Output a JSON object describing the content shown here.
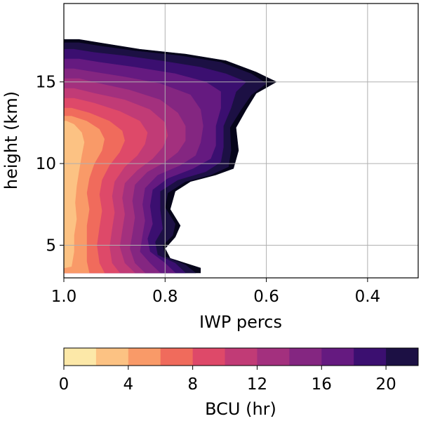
{
  "chart_data": {
    "type": "filled-contour",
    "xlabel": "IWP percs",
    "ylabel": "height (km)",
    "xlim": [
      1.0,
      0.3
    ],
    "ylim": [
      3.0,
      19.8
    ],
    "x_ticks": [
      1.0,
      0.8,
      0.6,
      0.4
    ],
    "x_tick_labels": [
      "1.0",
      "0.8",
      "0.6",
      "0.4"
    ],
    "y_ticks": [
      5,
      10,
      15
    ],
    "y_tick_labels": [
      "5",
      "10",
      "15"
    ],
    "grid": true,
    "colorbar": {
      "label": "BCU (hr)",
      "orientation": "horizontal",
      "placement": "bottom",
      "levels": [
        0,
        2,
        4,
        6,
        8,
        10,
        12,
        14,
        16,
        18,
        20,
        22
      ],
      "tick_values": [
        0,
        4,
        8,
        12,
        16,
        20
      ],
      "tick_labels": [
        "0",
        "4",
        "8",
        "12",
        "16",
        "20"
      ],
      "colors": [
        "#fce8a8",
        "#fcc283",
        "#f99a68",
        "#f06b5c",
        "#de4969",
        "#c13b76",
        "#a3307e",
        "#842681",
        "#651a80",
        "#3b0f70",
        "#1c1044",
        "#06051a"
      ]
    },
    "contour_boundaries": [
      {
        "level": 22,
        "points": [
          [
            1.0,
            3.3
          ],
          [
            0.73,
            3.3
          ],
          [
            0.73,
            3.6
          ],
          [
            0.79,
            4.2
          ],
          [
            0.8,
            4.8
          ],
          [
            0.78,
            5.5
          ],
          [
            0.77,
            6.2
          ],
          [
            0.79,
            7.2
          ],
          [
            0.78,
            8.3
          ],
          [
            0.75,
            8.9
          ],
          [
            0.7,
            9.3
          ],
          [
            0.665,
            9.7
          ],
          [
            0.655,
            10.8
          ],
          [
            0.66,
            12.2
          ],
          [
            0.64,
            13.3
          ],
          [
            0.62,
            14.3
          ],
          [
            0.58,
            15.0
          ],
          [
            0.62,
            15.6
          ],
          [
            0.68,
            16.3
          ],
          [
            0.76,
            16.7
          ],
          [
            0.85,
            17.0
          ],
          [
            0.93,
            17.4
          ],
          [
            0.97,
            17.6
          ],
          [
            1.0,
            17.6
          ]
        ]
      },
      {
        "level": 20,
        "points": [
          [
            1.0,
            3.3
          ],
          [
            0.74,
            3.3
          ],
          [
            0.76,
            3.8
          ],
          [
            0.8,
            4.3
          ],
          [
            0.805,
            5.0
          ],
          [
            0.785,
            5.6
          ],
          [
            0.78,
            6.3
          ],
          [
            0.8,
            7.3
          ],
          [
            0.795,
            8.2
          ],
          [
            0.76,
            8.9
          ],
          [
            0.71,
            9.3
          ],
          [
            0.675,
            9.8
          ],
          [
            0.67,
            10.8
          ],
          [
            0.672,
            12.2
          ],
          [
            0.65,
            13.3
          ],
          [
            0.63,
            14.2
          ],
          [
            0.6,
            14.9
          ],
          [
            0.63,
            15.5
          ],
          [
            0.69,
            16.2
          ],
          [
            0.77,
            16.6
          ],
          [
            0.86,
            16.9
          ],
          [
            0.93,
            17.2
          ],
          [
            0.97,
            17.4
          ],
          [
            1.0,
            17.4
          ]
        ]
      },
      {
        "level": 18,
        "points": [
          [
            1.0,
            3.3
          ],
          [
            0.76,
            3.3
          ],
          [
            0.78,
            3.9
          ],
          [
            0.815,
            4.4
          ],
          [
            0.82,
            5.2
          ],
          [
            0.805,
            6.0
          ],
          [
            0.81,
            7.2
          ],
          [
            0.81,
            8.3
          ],
          [
            0.775,
            9.0
          ],
          [
            0.72,
            9.5
          ],
          [
            0.69,
            10.1
          ],
          [
            0.685,
            11.0
          ],
          [
            0.685,
            12.3
          ],
          [
            0.67,
            13.4
          ],
          [
            0.66,
            14.4
          ],
          [
            0.64,
            15.0
          ],
          [
            0.68,
            15.5
          ],
          [
            0.73,
            15.9
          ],
          [
            0.81,
            16.3
          ],
          [
            0.88,
            16.6
          ],
          [
            0.94,
            16.8
          ],
          [
            0.98,
            17.0
          ],
          [
            1.0,
            17.0
          ]
        ]
      },
      {
        "level": 16,
        "points": [
          [
            1.0,
            3.3
          ],
          [
            0.78,
            3.3
          ],
          [
            0.8,
            3.9
          ],
          [
            0.83,
            4.6
          ],
          [
            0.835,
            5.4
          ],
          [
            0.825,
            6.3
          ],
          [
            0.83,
            7.4
          ],
          [
            0.825,
            8.4
          ],
          [
            0.795,
            9.1
          ],
          [
            0.745,
            9.7
          ],
          [
            0.71,
            10.3
          ],
          [
            0.7,
            11.1
          ],
          [
            0.7,
            12.3
          ],
          [
            0.69,
            13.4
          ],
          [
            0.69,
            14.4
          ],
          [
            0.72,
            15.0
          ],
          [
            0.78,
            15.5
          ],
          [
            0.86,
            15.9
          ],
          [
            0.93,
            16.2
          ],
          [
            0.97,
            16.4
          ],
          [
            1.0,
            16.4
          ]
        ]
      },
      {
        "level": 14,
        "points": [
          [
            1.0,
            3.3
          ],
          [
            0.81,
            3.3
          ],
          [
            0.83,
            3.9
          ],
          [
            0.85,
            4.6
          ],
          [
            0.845,
            5.6
          ],
          [
            0.84,
            6.5
          ],
          [
            0.845,
            7.5
          ],
          [
            0.84,
            8.5
          ],
          [
            0.815,
            9.3
          ],
          [
            0.77,
            9.9
          ],
          [
            0.74,
            10.5
          ],
          [
            0.73,
            11.3
          ],
          [
            0.725,
            12.3
          ],
          [
            0.73,
            13.3
          ],
          [
            0.75,
            14.2
          ],
          [
            0.81,
            14.9
          ],
          [
            0.88,
            15.3
          ],
          [
            0.94,
            15.6
          ],
          [
            0.98,
            15.8
          ],
          [
            1.0,
            15.8
          ]
        ]
      },
      {
        "level": 12,
        "points": [
          [
            1.0,
            3.3
          ],
          [
            0.84,
            3.3
          ],
          [
            0.86,
            3.9
          ],
          [
            0.87,
            4.8
          ],
          [
            0.865,
            5.7
          ],
          [
            0.86,
            6.7
          ],
          [
            0.865,
            7.7
          ],
          [
            0.86,
            8.7
          ],
          [
            0.835,
            9.5
          ],
          [
            0.8,
            10.1
          ],
          [
            0.775,
            10.7
          ],
          [
            0.76,
            11.4
          ],
          [
            0.76,
            12.3
          ],
          [
            0.775,
            13.1
          ],
          [
            0.81,
            13.9
          ],
          [
            0.87,
            14.5
          ],
          [
            0.93,
            14.9
          ],
          [
            0.97,
            15.2
          ],
          [
            1.0,
            15.2
          ]
        ]
      },
      {
        "level": 10,
        "points": [
          [
            1.0,
            3.3
          ],
          [
            0.86,
            3.3
          ],
          [
            0.88,
            3.9
          ],
          [
            0.89,
            4.9
          ],
          [
            0.885,
            5.9
          ],
          [
            0.88,
            6.9
          ],
          [
            0.885,
            7.9
          ],
          [
            0.88,
            8.8
          ],
          [
            0.855,
            9.6
          ],
          [
            0.825,
            10.3
          ],
          [
            0.805,
            11.0
          ],
          [
            0.795,
            11.7
          ],
          [
            0.8,
            12.5
          ],
          [
            0.83,
            13.3
          ],
          [
            0.88,
            13.9
          ],
          [
            0.94,
            14.3
          ],
          [
            0.98,
            14.6
          ],
          [
            1.0,
            14.6
          ]
        ]
      },
      {
        "level": 8,
        "points": [
          [
            1.0,
            3.3
          ],
          [
            0.89,
            3.3
          ],
          [
            0.905,
            3.9
          ],
          [
            0.91,
            4.9
          ],
          [
            0.905,
            6.0
          ],
          [
            0.9,
            7.0
          ],
          [
            0.905,
            8.0
          ],
          [
            0.9,
            8.9
          ],
          [
            0.88,
            9.8
          ],
          [
            0.855,
            10.5
          ],
          [
            0.84,
            11.2
          ],
          [
            0.835,
            11.9
          ],
          [
            0.85,
            12.6
          ],
          [
            0.89,
            13.2
          ],
          [
            0.94,
            13.7
          ],
          [
            0.98,
            14.0
          ],
          [
            1.0,
            14.0
          ]
        ]
      },
      {
        "level": 6,
        "points": [
          [
            1.0,
            3.3
          ],
          [
            0.92,
            3.3
          ],
          [
            0.93,
            3.9
          ],
          [
            0.935,
            5.0
          ],
          [
            0.93,
            6.1
          ],
          [
            0.925,
            7.1
          ],
          [
            0.93,
            8.1
          ],
          [
            0.925,
            9.0
          ],
          [
            0.91,
            9.9
          ],
          [
            0.89,
            10.7
          ],
          [
            0.88,
            11.4
          ],
          [
            0.885,
            12.0
          ],
          [
            0.91,
            12.6
          ],
          [
            0.95,
            13.1
          ],
          [
            0.985,
            13.4
          ],
          [
            1.0,
            13.4
          ]
        ]
      },
      {
        "level": 4,
        "points": [
          [
            1.0,
            3.3
          ],
          [
            0.95,
            3.3
          ],
          [
            0.955,
            4.0
          ],
          [
            0.955,
            5.1
          ],
          [
            0.955,
            6.2
          ],
          [
            0.95,
            7.2
          ],
          [
            0.955,
            8.2
          ],
          [
            0.95,
            9.1
          ],
          [
            0.94,
            10.0
          ],
          [
            0.925,
            10.8
          ],
          [
            0.92,
            11.5
          ],
          [
            0.93,
            12.1
          ],
          [
            0.955,
            12.6
          ],
          [
            0.985,
            12.9
          ],
          [
            1.0,
            12.9
          ]
        ]
      },
      {
        "level": 2,
        "points": [
          [
            1.0,
            3.6
          ],
          [
            0.985,
            3.7
          ],
          [
            0.98,
            4.6
          ],
          [
            0.98,
            5.6
          ],
          [
            0.975,
            6.6
          ],
          [
            0.978,
            7.6
          ],
          [
            0.975,
            8.6
          ],
          [
            0.97,
            9.6
          ],
          [
            0.965,
            10.5
          ],
          [
            0.96,
            11.3
          ],
          [
            0.965,
            11.9
          ],
          [
            0.98,
            12.4
          ],
          [
            0.995,
            12.6
          ],
          [
            1.0,
            12.6
          ]
        ]
      }
    ]
  }
}
